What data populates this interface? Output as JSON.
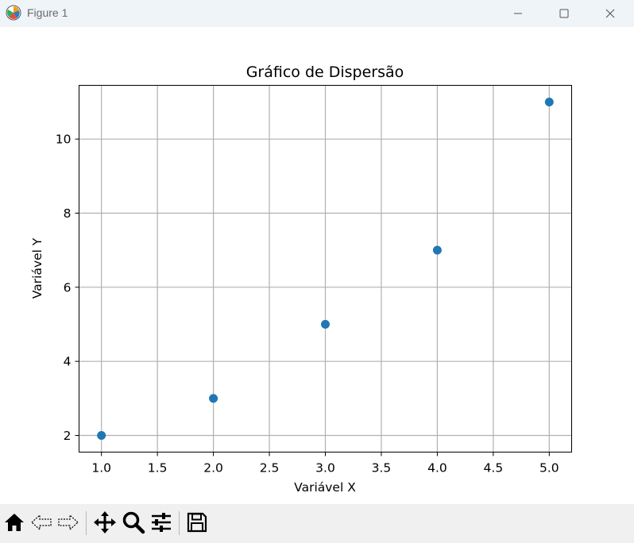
{
  "window": {
    "title": "Figure 1",
    "icons": [
      "matplotlib-icon",
      "minimize-icon",
      "maximize-icon",
      "close-icon"
    ]
  },
  "toolbar": {
    "icons": [
      "home-icon",
      "back-icon",
      "forward-icon",
      "pan-icon",
      "zoom-icon",
      "configure-subplots-icon",
      "save-icon"
    ]
  },
  "chart_data": {
    "type": "scatter",
    "title": "Gráfico de Dispersão",
    "xlabel": "Variável X",
    "ylabel": "Variável Y",
    "x": [
      1,
      2,
      3,
      4,
      5
    ],
    "y": [
      2,
      3,
      5,
      7,
      11
    ],
    "xlim": [
      0.8,
      5.2
    ],
    "ylim": [
      1.55,
      11.45
    ],
    "xticks": [
      "1.0",
      "1.5",
      "2.0",
      "2.5",
      "3.0",
      "3.5",
      "4.0",
      "4.5",
      "5.0"
    ],
    "yticks": [
      "2",
      "4",
      "6",
      "8",
      "10"
    ],
    "grid": true,
    "marker_color": "#1f77b4"
  }
}
